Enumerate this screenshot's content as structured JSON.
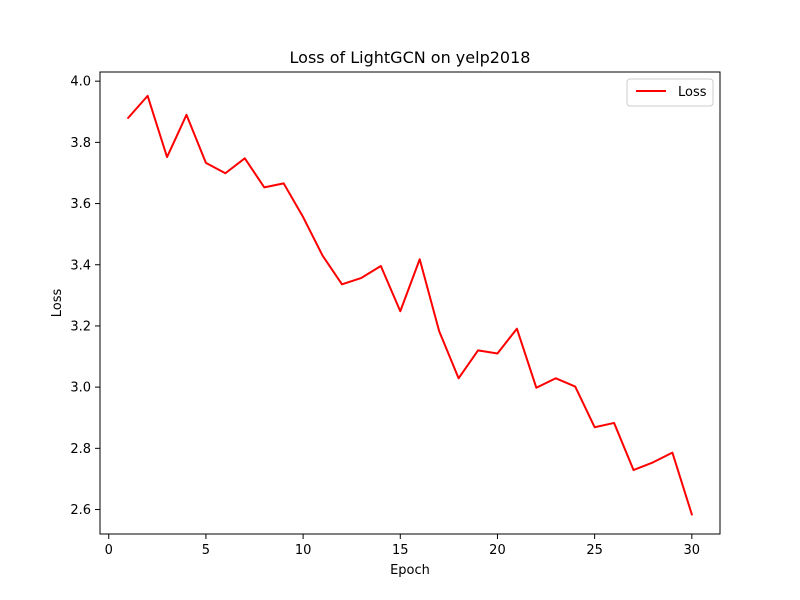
{
  "chart_data": {
    "type": "line",
    "title": "Loss of LightGCN on yelp2018",
    "xlabel": "Epoch",
    "ylabel": "Loss",
    "xlim": [
      -0.45,
      31.45
    ],
    "ylim": [
      2.52,
      4.03
    ],
    "x_ticks": [
      0,
      5,
      10,
      15,
      20,
      25,
      30
    ],
    "y_ticks": [
      2.6,
      2.8,
      3.0,
      3.2,
      3.4,
      3.6,
      3.8,
      4.0
    ],
    "y_tick_labels": [
      "2.6",
      "2.8",
      "3.0",
      "3.2",
      "3.4",
      "3.6",
      "3.8",
      "4.0"
    ],
    "grid": false,
    "legend_position": "top-right",
    "series": [
      {
        "name": "Loss",
        "color": "#ff0000",
        "x": [
          1,
          2,
          3,
          4,
          5,
          6,
          7,
          8,
          9,
          10,
          11,
          12,
          13,
          14,
          15,
          16,
          17,
          18,
          19,
          20,
          21,
          22,
          23,
          24,
          25,
          26,
          27,
          28,
          29,
          30
        ],
        "y": [
          3.88,
          3.952,
          3.752,
          3.89,
          3.733,
          3.699,
          3.748,
          3.653,
          3.666,
          3.556,
          3.43,
          3.336,
          3.357,
          3.396,
          3.248,
          3.418,
          3.183,
          3.029,
          3.12,
          3.11,
          3.191,
          2.998,
          3.029,
          3.002,
          2.869,
          2.883,
          2.729,
          2.754,
          2.786,
          2.584
        ]
      }
    ]
  }
}
